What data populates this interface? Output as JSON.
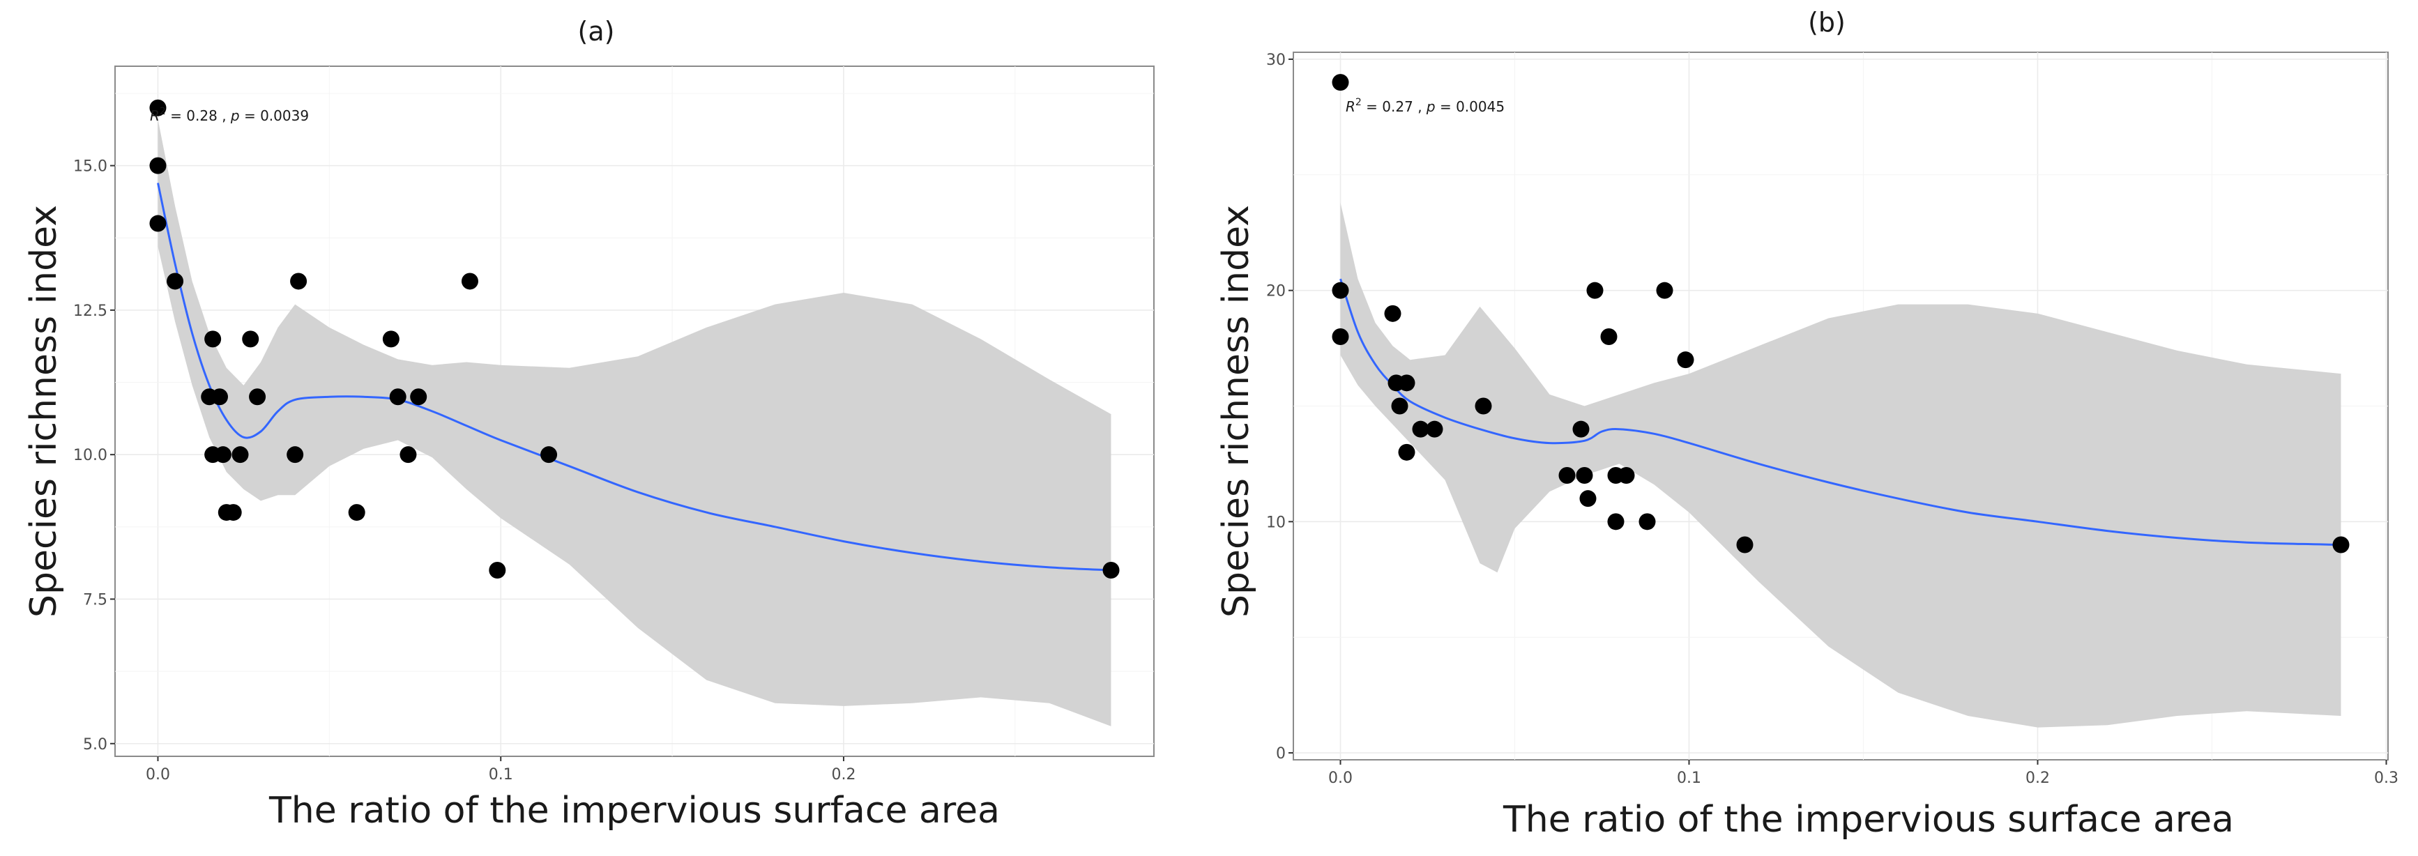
{
  "colors": {
    "point": "#000000",
    "smooth_line": "#3366ff",
    "confidence_band": "#d3d3d3",
    "grid": "#ebebeb",
    "border": "#8a8a8a"
  },
  "chart_data": [
    {
      "type": "scatter",
      "panel_label": "(a)",
      "title": "(a)",
      "xlabel": "The ratio of the impervious surface area",
      "ylabel": "Species richness index",
      "xlim": [
        -0.0125,
        0.2905
      ],
      "ylim": [
        4.78,
        16.72
      ],
      "xticks": [
        0.0,
        0.1,
        0.2
      ],
      "xtick_labels": [
        "0.0",
        "0.1",
        "0.2"
      ],
      "yticks": [
        5.0,
        7.5,
        10.0,
        12.5,
        15.0
      ],
      "ytick_labels": [
        "5.0",
        "7.5",
        "10.0",
        "12.5",
        "15.0"
      ],
      "annotation": {
        "r2_symbol": "R",
        "r2_exp": "2",
        "r2_value": " = 0.28 , ",
        "p_symbol": "p",
        "p_value": " = 0.0039"
      },
      "points": [
        {
          "x": 0.0,
          "y": 16
        },
        {
          "x": 0.0,
          "y": 15
        },
        {
          "x": 0.0,
          "y": 14
        },
        {
          "x": 0.005,
          "y": 13
        },
        {
          "x": 0.016,
          "y": 12
        },
        {
          "x": 0.015,
          "y": 11
        },
        {
          "x": 0.018,
          "y": 11
        },
        {
          "x": 0.016,
          "y": 10
        },
        {
          "x": 0.019,
          "y": 10
        },
        {
          "x": 0.02,
          "y": 9
        },
        {
          "x": 0.022,
          "y": 9
        },
        {
          "x": 0.024,
          "y": 10
        },
        {
          "x": 0.027,
          "y": 12
        },
        {
          "x": 0.029,
          "y": 11
        },
        {
          "x": 0.04,
          "y": 10
        },
        {
          "x": 0.041,
          "y": 13
        },
        {
          "x": 0.058,
          "y": 9
        },
        {
          "x": 0.068,
          "y": 12
        },
        {
          "x": 0.07,
          "y": 11
        },
        {
          "x": 0.073,
          "y": 10
        },
        {
          "x": 0.076,
          "y": 11
        },
        {
          "x": 0.091,
          "y": 13
        },
        {
          "x": 0.099,
          "y": 8
        },
        {
          "x": 0.114,
          "y": 10
        },
        {
          "x": 0.278,
          "y": 8
        }
      ],
      "smooth": [
        {
          "x": 0.0,
          "y": 14.7
        },
        {
          "x": 0.005,
          "y": 13.3
        },
        {
          "x": 0.01,
          "y": 12.1
        },
        {
          "x": 0.015,
          "y": 11.2
        },
        {
          "x": 0.02,
          "y": 10.6
        },
        {
          "x": 0.025,
          "y": 10.3
        },
        {
          "x": 0.03,
          "y": 10.4
        },
        {
          "x": 0.035,
          "y": 10.75
        },
        {
          "x": 0.04,
          "y": 10.95
        },
        {
          "x": 0.05,
          "y": 11.0
        },
        {
          "x": 0.06,
          "y": 11.0
        },
        {
          "x": 0.07,
          "y": 10.95
        },
        {
          "x": 0.08,
          "y": 10.75
        },
        {
          "x": 0.09,
          "y": 10.5
        },
        {
          "x": 0.1,
          "y": 10.25
        },
        {
          "x": 0.12,
          "y": 9.8
        },
        {
          "x": 0.14,
          "y": 9.35
        },
        {
          "x": 0.16,
          "y": 9.0
        },
        {
          "x": 0.18,
          "y": 8.75
        },
        {
          "x": 0.2,
          "y": 8.5
        },
        {
          "x": 0.22,
          "y": 8.3
        },
        {
          "x": 0.24,
          "y": 8.15
        },
        {
          "x": 0.26,
          "y": 8.05
        },
        {
          "x": 0.278,
          "y": 8.0
        }
      ],
      "band_upper": [
        {
          "x": 0.0,
          "y": 15.8
        },
        {
          "x": 0.005,
          "y": 14.3
        },
        {
          "x": 0.01,
          "y": 13.0
        },
        {
          "x": 0.015,
          "y": 12.1
        },
        {
          "x": 0.02,
          "y": 11.5
        },
        {
          "x": 0.025,
          "y": 11.2
        },
        {
          "x": 0.03,
          "y": 11.6
        },
        {
          "x": 0.035,
          "y": 12.2
        },
        {
          "x": 0.04,
          "y": 12.6
        },
        {
          "x": 0.05,
          "y": 12.2
        },
        {
          "x": 0.06,
          "y": 11.9
        },
        {
          "x": 0.07,
          "y": 11.65
        },
        {
          "x": 0.08,
          "y": 11.55
        },
        {
          "x": 0.09,
          "y": 11.6
        },
        {
          "x": 0.1,
          "y": 11.55
        },
        {
          "x": 0.12,
          "y": 11.5
        },
        {
          "x": 0.14,
          "y": 11.7
        },
        {
          "x": 0.16,
          "y": 12.2
        },
        {
          "x": 0.18,
          "y": 12.6
        },
        {
          "x": 0.2,
          "y": 12.8
        },
        {
          "x": 0.22,
          "y": 12.6
        },
        {
          "x": 0.24,
          "y": 12.0
        },
        {
          "x": 0.26,
          "y": 11.3
        },
        {
          "x": 0.278,
          "y": 10.7
        }
      ],
      "band_lower": [
        {
          "x": 0.0,
          "y": 13.6
        },
        {
          "x": 0.005,
          "y": 12.3
        },
        {
          "x": 0.01,
          "y": 11.2
        },
        {
          "x": 0.015,
          "y": 10.3
        },
        {
          "x": 0.02,
          "y": 9.7
        },
        {
          "x": 0.025,
          "y": 9.4
        },
        {
          "x": 0.03,
          "y": 9.2
        },
        {
          "x": 0.035,
          "y": 9.3
        },
        {
          "x": 0.04,
          "y": 9.3
        },
        {
          "x": 0.05,
          "y": 9.8
        },
        {
          "x": 0.06,
          "y": 10.1
        },
        {
          "x": 0.07,
          "y": 10.25
        },
        {
          "x": 0.08,
          "y": 9.95
        },
        {
          "x": 0.09,
          "y": 9.4
        },
        {
          "x": 0.1,
          "y": 8.9
        },
        {
          "x": 0.12,
          "y": 8.1
        },
        {
          "x": 0.14,
          "y": 7.0
        },
        {
          "x": 0.16,
          "y": 6.1
        },
        {
          "x": 0.18,
          "y": 5.7
        },
        {
          "x": 0.2,
          "y": 5.65
        },
        {
          "x": 0.22,
          "y": 5.7
        },
        {
          "x": 0.24,
          "y": 5.8
        },
        {
          "x": 0.26,
          "y": 5.7
        },
        {
          "x": 0.278,
          "y": 5.3
        }
      ]
    },
    {
      "type": "scatter",
      "panel_label": "(b)",
      "title": "(b)",
      "xlabel": "The ratio of the impervious surface area",
      "ylabel": "Species richness index",
      "xlim": [
        -0.0135,
        0.3005
      ],
      "ylim": [
        -0.3,
        30.3
      ],
      "xticks": [
        0.0,
        0.1,
        0.2,
        0.3
      ],
      "xtick_labels": [
        "0.0",
        "0.1",
        "0.2",
        "0.3"
      ],
      "yticks": [
        0,
        10,
        20,
        30
      ],
      "ytick_labels": [
        "0",
        "10",
        "20",
        "30"
      ],
      "annotation": {
        "r2_symbol": "R",
        "r2_exp": "2",
        "r2_value": " = 0.27 , ",
        "p_symbol": "p",
        "p_value": " = 0.0045"
      },
      "points": [
        {
          "x": 0.0,
          "y": 29
        },
        {
          "x": 0.0,
          "y": 20
        },
        {
          "x": 0.0,
          "y": 18
        },
        {
          "x": 0.015,
          "y": 19
        },
        {
          "x": 0.016,
          "y": 16
        },
        {
          "x": 0.019,
          "y": 16
        },
        {
          "x": 0.017,
          "y": 15
        },
        {
          "x": 0.019,
          "y": 13
        },
        {
          "x": 0.023,
          "y": 14
        },
        {
          "x": 0.027,
          "y": 14
        },
        {
          "x": 0.041,
          "y": 15
        },
        {
          "x": 0.065,
          "y": 12
        },
        {
          "x": 0.069,
          "y": 14
        },
        {
          "x": 0.07,
          "y": 12
        },
        {
          "x": 0.071,
          "y": 11
        },
        {
          "x": 0.073,
          "y": 20
        },
        {
          "x": 0.077,
          "y": 18
        },
        {
          "x": 0.079,
          "y": 12
        },
        {
          "x": 0.079,
          "y": 10
        },
        {
          "x": 0.082,
          "y": 12
        },
        {
          "x": 0.088,
          "y": 10
        },
        {
          "x": 0.093,
          "y": 20
        },
        {
          "x": 0.099,
          "y": 17
        },
        {
          "x": 0.116,
          "y": 9
        },
        {
          "x": 0.287,
          "y": 9
        }
      ],
      "smooth": [
        {
          "x": 0.0,
          "y": 20.5
        },
        {
          "x": 0.005,
          "y": 18.2
        },
        {
          "x": 0.01,
          "y": 16.8
        },
        {
          "x": 0.015,
          "y": 15.9
        },
        {
          "x": 0.02,
          "y": 15.2
        },
        {
          "x": 0.03,
          "y": 14.5
        },
        {
          "x": 0.04,
          "y": 14.0
        },
        {
          "x": 0.05,
          "y": 13.6
        },
        {
          "x": 0.06,
          "y": 13.4
        },
        {
          "x": 0.07,
          "y": 13.5
        },
        {
          "x": 0.075,
          "y": 13.9
        },
        {
          "x": 0.08,
          "y": 14.0
        },
        {
          "x": 0.09,
          "y": 13.8
        },
        {
          "x": 0.1,
          "y": 13.4
        },
        {
          "x": 0.12,
          "y": 12.5
        },
        {
          "x": 0.14,
          "y": 11.7
        },
        {
          "x": 0.16,
          "y": 11.0
        },
        {
          "x": 0.18,
          "y": 10.4
        },
        {
          "x": 0.2,
          "y": 10.0
        },
        {
          "x": 0.22,
          "y": 9.6
        },
        {
          "x": 0.24,
          "y": 9.3
        },
        {
          "x": 0.26,
          "y": 9.1
        },
        {
          "x": 0.287,
          "y": 9.0
        }
      ],
      "band_upper": [
        {
          "x": 0.0,
          "y": 23.8
        },
        {
          "x": 0.005,
          "y": 20.5
        },
        {
          "x": 0.01,
          "y": 18.6
        },
        {
          "x": 0.015,
          "y": 17.6
        },
        {
          "x": 0.02,
          "y": 17.0
        },
        {
          "x": 0.03,
          "y": 17.2
        },
        {
          "x": 0.04,
          "y": 19.3
        },
        {
          "x": 0.05,
          "y": 17.5
        },
        {
          "x": 0.06,
          "y": 15.5
        },
        {
          "x": 0.07,
          "y": 15.0
        },
        {
          "x": 0.08,
          "y": 15.5
        },
        {
          "x": 0.09,
          "y": 16.0
        },
        {
          "x": 0.1,
          "y": 16.4
        },
        {
          "x": 0.12,
          "y": 17.6
        },
        {
          "x": 0.14,
          "y": 18.8
        },
        {
          "x": 0.16,
          "y": 19.4
        },
        {
          "x": 0.18,
          "y": 19.4
        },
        {
          "x": 0.2,
          "y": 19.0
        },
        {
          "x": 0.22,
          "y": 18.2
        },
        {
          "x": 0.24,
          "y": 17.4
        },
        {
          "x": 0.26,
          "y": 16.8
        },
        {
          "x": 0.287,
          "y": 16.4
        }
      ],
      "band_lower": [
        {
          "x": 0.0,
          "y": 17.2
        },
        {
          "x": 0.005,
          "y": 15.9
        },
        {
          "x": 0.01,
          "y": 15.0
        },
        {
          "x": 0.015,
          "y": 14.2
        },
        {
          "x": 0.02,
          "y": 13.4
        },
        {
          "x": 0.03,
          "y": 11.8
        },
        {
          "x": 0.04,
          "y": 8.2
        },
        {
          "x": 0.045,
          "y": 7.8
        },
        {
          "x": 0.05,
          "y": 9.7
        },
        {
          "x": 0.06,
          "y": 11.3
        },
        {
          "x": 0.07,
          "y": 12.0
        },
        {
          "x": 0.08,
          "y": 12.5
        },
        {
          "x": 0.09,
          "y": 11.6
        },
        {
          "x": 0.1,
          "y": 10.4
        },
        {
          "x": 0.12,
          "y": 7.4
        },
        {
          "x": 0.14,
          "y": 4.6
        },
        {
          "x": 0.16,
          "y": 2.6
        },
        {
          "x": 0.18,
          "y": 1.6
        },
        {
          "x": 0.2,
          "y": 1.1
        },
        {
          "x": 0.22,
          "y": 1.2
        },
        {
          "x": 0.24,
          "y": 1.6
        },
        {
          "x": 0.26,
          "y": 1.8
        },
        {
          "x": 0.287,
          "y": 1.6
        }
      ]
    }
  ]
}
